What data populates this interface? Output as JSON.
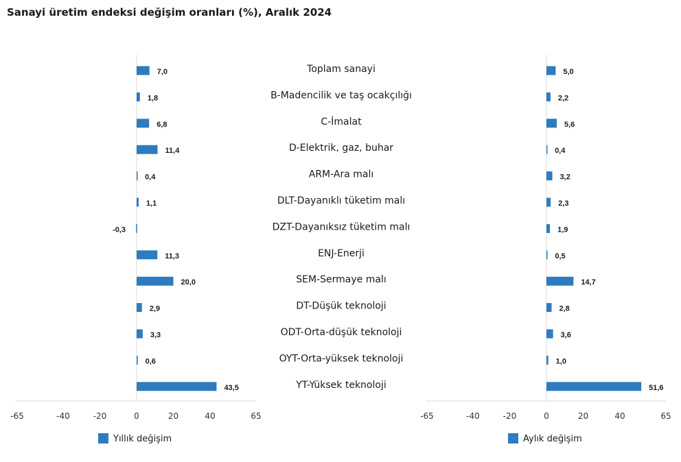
{
  "title": "Sanayi üretim endeksi değişim oranları (%), Aralık 2024",
  "chart_data": {
    "type": "bar",
    "orientation": "horizontal",
    "title": "Sanayi üretim endeksi değişim oranları (%), Aralık 2024",
    "categories": [
      "Toplam sanayi",
      "B-Madencilik ve taş ocakçılığı",
      "C-İmalat",
      "D-Elektrik, gaz, buhar",
      "ARM-Ara malı",
      "DLT-Dayanıklı tüketim malı",
      "DZT-Dayanıksız tüketim malı",
      "ENJ-Enerji",
      "SEM-Sermaye malı",
      "DT-Düşük teknoloji",
      "ODT-Orta-düşük teknoloji",
      "OYT-Orta-yüksek teknoloji",
      "YT-Yüksek teknoloji"
    ],
    "series": [
      {
        "name": "Yıllık değişim",
        "values": [
          7.0,
          1.8,
          6.8,
          11.4,
          0.4,
          1.1,
          -0.3,
          11.3,
          20.0,
          2.9,
          3.3,
          0.6,
          43.5
        ],
        "labels": [
          "7,0",
          "1,8",
          "6,8",
          "11,4",
          "0,4",
          "1,1",
          "-0,3",
          "11,3",
          "20,0",
          "2,9",
          "3,3",
          "0,6",
          "43,5"
        ]
      },
      {
        "name": "Aylık değişim",
        "values": [
          5.0,
          2.2,
          5.6,
          0.4,
          3.2,
          2.3,
          1.9,
          0.5,
          14.7,
          2.8,
          3.6,
          1.0,
          51.6
        ],
        "labels": [
          "5,0",
          "2,2",
          "5,6",
          "0,4",
          "3,2",
          "2,3",
          "1,9",
          "0,5",
          "14,7",
          "2,8",
          "3,6",
          "1,0",
          "51,6"
        ]
      }
    ],
    "xlim": [
      -65,
      65
    ],
    "xticks": [
      "-65",
      "-40",
      "-20",
      "0",
      "20",
      "40",
      "65"
    ],
    "xtick_values": [
      -65,
      -40,
      -20,
      0,
      20,
      40,
      65
    ],
    "bar_color": "#2e7bbf",
    "legend_position": "bottom",
    "grid": false
  }
}
